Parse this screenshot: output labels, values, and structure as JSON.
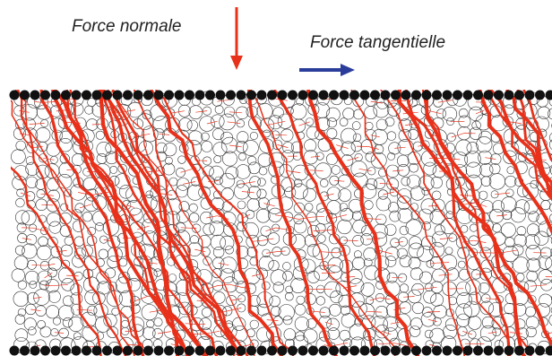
{
  "labels": {
    "normal_force": "Force normale",
    "tangential_force": "Force tangentielle"
  },
  "colors": {
    "normal_arrow": "#e8311a",
    "tangential_arrow": "#2b3d9a",
    "strong_chains": "#e8311a",
    "grain_outline": "#333333",
    "wall_grains": "#111111"
  },
  "icons": {
    "normal_arrow": "arrow-down-icon",
    "tangential_arrow": "arrow-right-icon"
  }
}
